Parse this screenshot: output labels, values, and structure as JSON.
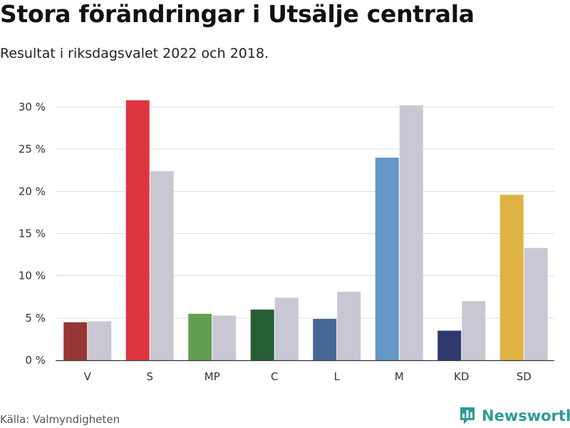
{
  "header": {
    "title": "Stora förändringar i Utsälje centrala",
    "subtitle": "Resultat i riksdagsvalet 2022 och 2018."
  },
  "footer": {
    "source": "Källa: Valmyndigheten",
    "brand": "Newsworthy",
    "brand_icon": "bar-chart-logo-icon",
    "brand_color": "#2f9b96"
  },
  "chart_data": {
    "type": "bar",
    "categories": [
      "V",
      "S",
      "MP",
      "C",
      "L",
      "M",
      "KD",
      "SD"
    ],
    "series": [
      {
        "values": [
          4.5,
          30.8,
          5.5,
          6.0,
          4.9,
          24.0,
          3.5,
          19.6
        ],
        "colors": [
          "#963736",
          "#dd3640",
          "#639d50",
          "#265e36",
          "#466895",
          "#6297c6",
          "#2e3a6d",
          "#dfb343"
        ]
      },
      {
        "values": [
          4.6,
          22.4,
          5.3,
          7.4,
          8.1,
          30.2,
          7.0,
          13.3
        ],
        "color": "#c8c7d3"
      }
    ],
    "yticks": [
      "0 %",
      "5 %",
      "10 %",
      "15 %",
      "20 %",
      "25 %",
      "30 %"
    ],
    "ylim": [
      0,
      30
    ],
    "grid": true
  }
}
